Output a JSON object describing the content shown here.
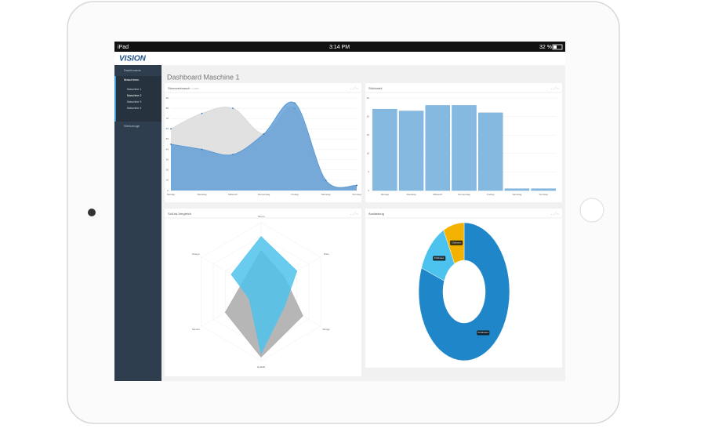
{
  "status_bar": {
    "device": "iPad",
    "time": "3:14 PM",
    "battery": "32 %"
  },
  "logo": "VISION",
  "sidebar": {
    "items": [
      {
        "label": "Dashboards"
      },
      {
        "label": "Maschinen",
        "children": [
          "Maschine 1",
          "Maschine 2",
          "Maschine 3",
          "Maschine 4"
        ]
      },
      {
        "label": "Werkzeuge"
      }
    ]
  },
  "page_title": "Dashboard Maschine 1",
  "chart_data": [
    {
      "type": "area",
      "title": "Stromverbrauch",
      "subtitle": "in kWh",
      "categories": [
        "Montag",
        "Dienstag",
        "Mittwoch",
        "Donnerstag",
        "Freitag",
        "Samstag",
        "Sonntag"
      ],
      "series": [
        {
          "color": "#d9d9d9",
          "values": [
            60,
            75,
            80,
            55,
            80,
            10,
            5
          ]
        },
        {
          "color": "#5b9bd5",
          "values": [
            45,
            40,
            35,
            55,
            85,
            10,
            5
          ]
        }
      ],
      "ylim": [
        0,
        90
      ],
      "yticks": [
        0,
        10,
        20,
        30,
        40,
        50,
        60,
        70,
        80,
        90
      ],
      "grid": true
    },
    {
      "type": "bar",
      "title": "Stückzahl",
      "categories": [
        "Montag",
        "Dienstag",
        "Mittwoch",
        "Donnerstag",
        "Freitag",
        "Samstag",
        "Sonntag"
      ],
      "values": [
        22,
        21.5,
        23,
        23,
        21,
        0.5,
        0.5
      ],
      "color": "#86b9e0",
      "ylim": [
        0,
        25
      ],
      "yticks": [
        0,
        5,
        10,
        15,
        20,
        25
      ],
      "grid": true
    },
    {
      "type": "radar",
      "title": "Soll-Ist-Vergleich",
      "categories": [
        "Tempo",
        "Preis",
        "Menge",
        "Qualität",
        "Service",
        "Design"
      ],
      "series": [
        {
          "color": "#a9a9a9",
          "values": [
            60,
            40,
            70,
            95,
            60,
            30
          ]
        },
        {
          "color": "#4fc3ec",
          "values": [
            80,
            60,
            40,
            90,
            20,
            50
          ]
        }
      ],
      "ylim": [
        0,
        100
      ]
    },
    {
      "type": "donut",
      "title": "Auslastung",
      "values": [
        54,
        8,
        5
      ],
      "value_labels": [
        "54 Minuten",
        "8 Minuten",
        "5 Minuten"
      ],
      "colors": [
        "#1f87c9",
        "#4cc2ee",
        "#f3b200"
      ]
    }
  ]
}
